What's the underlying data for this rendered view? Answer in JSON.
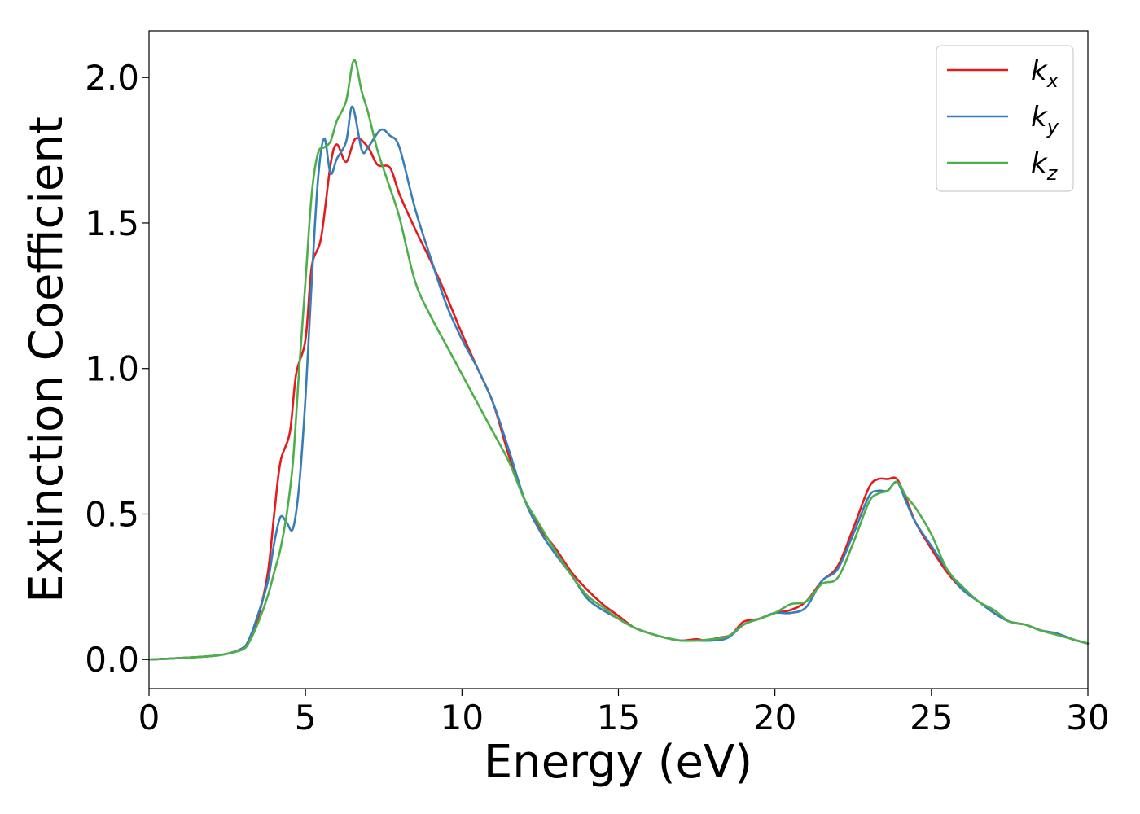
{
  "chart_data": {
    "type": "line",
    "xlabel": "Energy (eV)",
    "ylabel": "Extinction Coefficient",
    "xlim": [
      0,
      30
    ],
    "ylim": [
      -0.1,
      2.16
    ],
    "xticks": [
      0,
      5,
      10,
      15,
      20,
      25,
      30
    ],
    "yticks": [
      0.0,
      0.5,
      1.0,
      1.5,
      2.0
    ],
    "xtick_labels": [
      "0",
      "5",
      "10",
      "15",
      "20",
      "25",
      "30"
    ],
    "ytick_labels": [
      "0.0",
      "0.5",
      "1.0",
      "1.5",
      "2.0"
    ],
    "grid": false,
    "legend_position": "top-right",
    "series": [
      {
        "name": "k",
        "subscript": "x",
        "color": "#e41a1c",
        "x": [
          0,
          1,
          2,
          2.5,
          3,
          3.2,
          3.5,
          3.8,
          4.0,
          4.2,
          4.5,
          4.7,
          5.0,
          5.2,
          5.5,
          5.8,
          6.0,
          6.3,
          6.6,
          7.0,
          7.3,
          7.7,
          8.0,
          8.5,
          9.0,
          9.5,
          10.0,
          10.5,
          11.0,
          11.5,
          12.0,
          12.5,
          13.0,
          13.5,
          14.0,
          14.5,
          15.0,
          15.5,
          16.0,
          16.5,
          17.0,
          17.5,
          17.8,
          18.2,
          18.6,
          19.0,
          19.5,
          20.0,
          20.5,
          21.0,
          21.5,
          22.0,
          22.5,
          23.0,
          23.3,
          23.6,
          23.9,
          24.2,
          24.5,
          25.0,
          25.5,
          26.0,
          26.5,
          27.0,
          27.5,
          28.0,
          28.5,
          29.0,
          29.5,
          30.0
        ],
        "y": [
          0.0,
          0.005,
          0.012,
          0.02,
          0.04,
          0.07,
          0.15,
          0.3,
          0.5,
          0.68,
          0.78,
          0.98,
          1.1,
          1.35,
          1.45,
          1.7,
          1.77,
          1.71,
          1.79,
          1.76,
          1.7,
          1.69,
          1.6,
          1.48,
          1.37,
          1.25,
          1.12,
          1.0,
          0.88,
          0.7,
          0.55,
          0.45,
          0.38,
          0.3,
          0.24,
          0.19,
          0.15,
          0.11,
          0.09,
          0.075,
          0.065,
          0.07,
          0.065,
          0.075,
          0.085,
          0.13,
          0.14,
          0.16,
          0.17,
          0.2,
          0.27,
          0.32,
          0.45,
          0.59,
          0.62,
          0.62,
          0.62,
          0.55,
          0.47,
          0.38,
          0.3,
          0.24,
          0.2,
          0.16,
          0.13,
          0.12,
          0.1,
          0.09,
          0.07,
          0.055
        ]
      },
      {
        "name": "k",
        "subscript": "y",
        "color": "#377eb8",
        "x": [
          0,
          1,
          2,
          2.5,
          3,
          3.2,
          3.5,
          3.8,
          4.0,
          4.2,
          4.4,
          4.6,
          4.8,
          5.0,
          5.2,
          5.4,
          5.6,
          5.8,
          6.0,
          6.3,
          6.5,
          6.8,
          7.0,
          7.4,
          7.7,
          8.0,
          8.5,
          9.0,
          9.5,
          10.0,
          10.5,
          11.0,
          11.5,
          12.0,
          12.5,
          13.0,
          13.5,
          14.0,
          14.5,
          15.0,
          15.5,
          16.0,
          16.5,
          17.0,
          17.5,
          18.0,
          18.5,
          19.0,
          19.5,
          20.0,
          20.5,
          21.0,
          21.5,
          22.0,
          22.5,
          23.0,
          23.3,
          23.6,
          23.9,
          24.2,
          24.5,
          25.0,
          25.5,
          26.0,
          26.5,
          27.0,
          27.5,
          28.0,
          28.5,
          29.0,
          29.5,
          30.0
        ],
        "y": [
          0.0,
          0.005,
          0.012,
          0.02,
          0.04,
          0.07,
          0.16,
          0.27,
          0.4,
          0.49,
          0.47,
          0.45,
          0.6,
          0.9,
          1.3,
          1.65,
          1.79,
          1.67,
          1.72,
          1.78,
          1.9,
          1.75,
          1.76,
          1.82,
          1.8,
          1.76,
          1.55,
          1.38,
          1.22,
          1.1,
          1.0,
          0.88,
          0.72,
          0.55,
          0.44,
          0.36,
          0.29,
          0.21,
          0.17,
          0.14,
          0.11,
          0.09,
          0.075,
          0.065,
          0.065,
          0.065,
          0.075,
          0.12,
          0.14,
          0.16,
          0.16,
          0.18,
          0.27,
          0.31,
          0.43,
          0.56,
          0.58,
          0.58,
          0.61,
          0.54,
          0.47,
          0.39,
          0.31,
          0.24,
          0.2,
          0.16,
          0.13,
          0.12,
          0.1,
          0.09,
          0.07,
          0.055
        ]
      },
      {
        "name": "k",
        "subscript": "z",
        "color": "#4daf4a",
        "x": [
          0,
          1,
          2,
          2.5,
          3,
          3.2,
          3.5,
          3.8,
          4.0,
          4.2,
          4.4,
          4.6,
          4.8,
          5.0,
          5.2,
          5.4,
          5.6,
          5.8,
          6.0,
          6.3,
          6.55,
          6.8,
          7.0,
          7.3,
          7.7,
          8.0,
          8.5,
          9.0,
          9.5,
          10.0,
          10.5,
          11.0,
          11.5,
          12.0,
          12.5,
          13.0,
          13.5,
          14.0,
          14.5,
          15.0,
          15.5,
          16.0,
          16.5,
          17.0,
          17.5,
          18.0,
          18.5,
          19.0,
          19.5,
          20.0,
          20.5,
          21.0,
          21.5,
          22.0,
          22.5,
          23.0,
          23.3,
          23.6,
          23.9,
          24.2,
          24.5,
          25.0,
          25.5,
          26.0,
          26.5,
          27.0,
          27.5,
          28.0,
          28.5,
          29.0,
          29.5,
          30.0
        ],
        "y": [
          0.0,
          0.005,
          0.012,
          0.02,
          0.035,
          0.06,
          0.13,
          0.22,
          0.3,
          0.38,
          0.5,
          0.68,
          1.0,
          1.3,
          1.6,
          1.74,
          1.76,
          1.78,
          1.85,
          1.92,
          2.06,
          1.95,
          1.88,
          1.75,
          1.62,
          1.52,
          1.3,
          1.18,
          1.08,
          0.98,
          0.88,
          0.78,
          0.68,
          0.55,
          0.46,
          0.37,
          0.29,
          0.22,
          0.18,
          0.14,
          0.11,
          0.09,
          0.075,
          0.065,
          0.065,
          0.07,
          0.08,
          0.12,
          0.14,
          0.16,
          0.19,
          0.2,
          0.26,
          0.28,
          0.4,
          0.54,
          0.57,
          0.58,
          0.61,
          0.56,
          0.52,
          0.43,
          0.31,
          0.25,
          0.2,
          0.17,
          0.13,
          0.12,
          0.1,
          0.085,
          0.07,
          0.055
        ]
      }
    ]
  }
}
